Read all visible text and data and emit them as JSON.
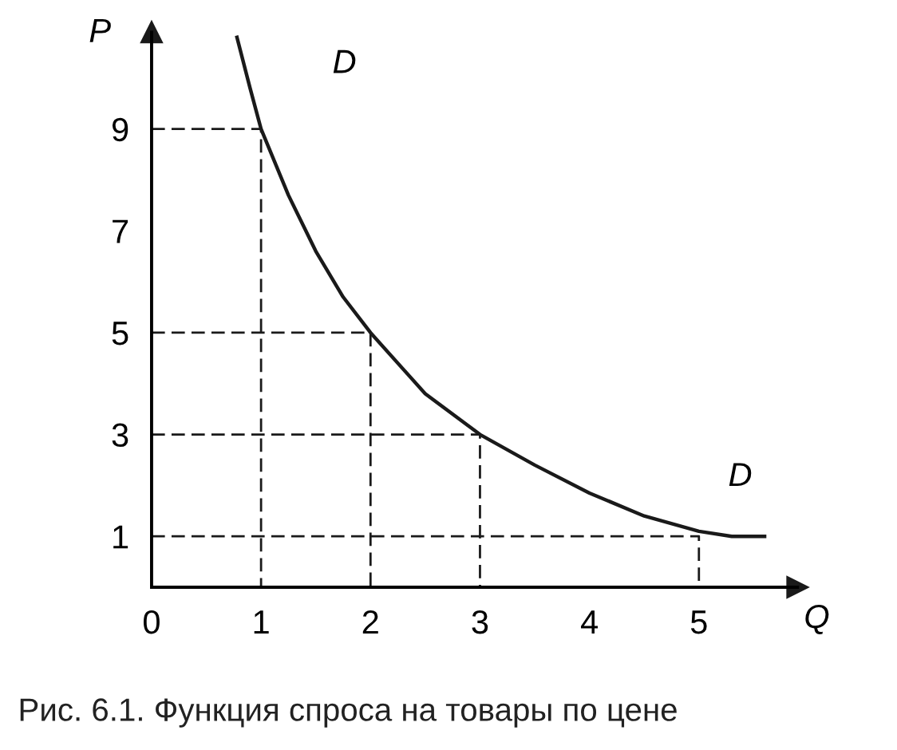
{
  "chart_data": {
    "type": "line",
    "title": "Рис. 6.1. Функция спроса на товары по цене",
    "xlabel": "Q",
    "ylabel": "P",
    "xlim": [
      0,
      5.9
    ],
    "ylim": [
      0,
      10.9
    ],
    "xticks": [
      0,
      1,
      2,
      3,
      4,
      5
    ],
    "yticks": [
      1,
      3,
      5,
      7,
      9
    ],
    "grid": false,
    "legend": false,
    "series": [
      {
        "color": "#1a1a1a",
        "line_style": "solid",
        "x": [
          0.78,
          0.9,
          1,
          1.25,
          1.5,
          1.75,
          2,
          2.5,
          3,
          3.5,
          4,
          4.5,
          5,
          5.3,
          5.6
        ],
        "values": [
          10.8,
          9.8,
          9,
          7.7,
          6.6,
          5.7,
          5,
          3.8,
          3,
          2.4,
          1.85,
          1.4,
          1.1,
          1.0,
          1.0
        ]
      },
      {
        "color": "#1a1a1a",
        "line_style": "dashed",
        "x": [
          0,
          1,
          1,
          null,
          0,
          2,
          2,
          null,
          0,
          3,
          3,
          null,
          0,
          5,
          5
        ],
        "values": [
          9,
          9,
          0,
          null,
          5,
          5,
          0,
          null,
          3,
          3,
          0,
          null,
          1,
          1,
          0
        ]
      }
    ],
    "annotations": [
      "D",
      "D"
    ]
  }
}
